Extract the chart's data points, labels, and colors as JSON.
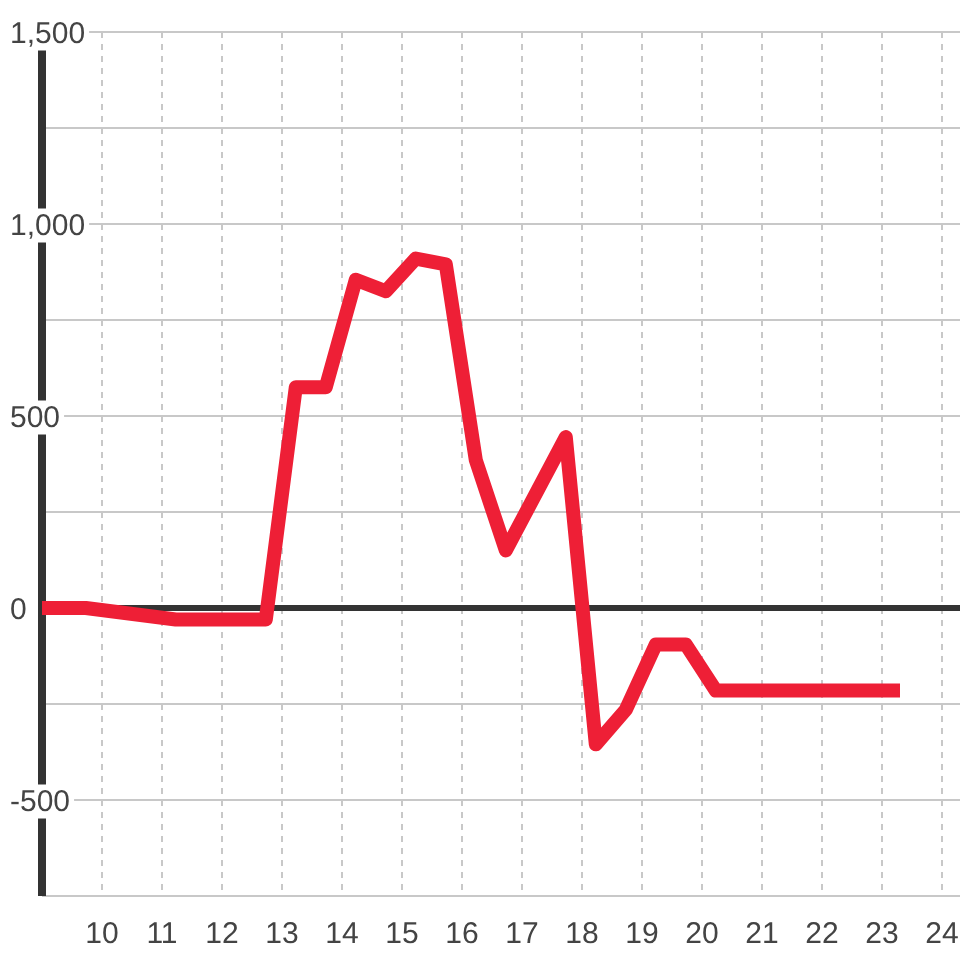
{
  "chart_data": {
    "type": "line",
    "x": [
      9,
      9.73,
      11.23,
      12.73,
      13.23,
      13.73,
      14.23,
      14.73,
      15.23,
      15.73,
      16.23,
      16.73,
      17.73,
      18.23,
      18.73,
      19.23,
      19.73,
      20.23,
      23.3
    ],
    "series": [
      {
        "color": "#ee1f36",
        "values": [
          0,
          0,
          -30,
          -30,
          575,
          575,
          855,
          825,
          910,
          895,
          385,
          150,
          445,
          -355,
          -265,
          -95,
          -95,
          -215,
          -215
        ]
      }
    ],
    "xlim": [
      9,
      24.3
    ],
    "ylim": [
      -750,
      1500
    ],
    "xticks": [
      10,
      11,
      12,
      13,
      14,
      15,
      16,
      17,
      18,
      19,
      20,
      21,
      22,
      23,
      24
    ],
    "yticks": [
      {
        "value": -750,
        "label": null
      },
      -500,
      {
        "value": -250,
        "label": null
      },
      0,
      {
        "value": 250,
        "label": null
      },
      500,
      {
        "value": 750,
        "label": null
      },
      {
        "value": 1000,
        "label": "1,000"
      },
      {
        "value": 1250,
        "label": null
      },
      {
        "value": 1500,
        "label": "1,500"
      }
    ],
    "grid": true,
    "ref_lines": [
      {
        "axis": "y",
        "value": 0,
        "color": "#333333"
      }
    ]
  }
}
